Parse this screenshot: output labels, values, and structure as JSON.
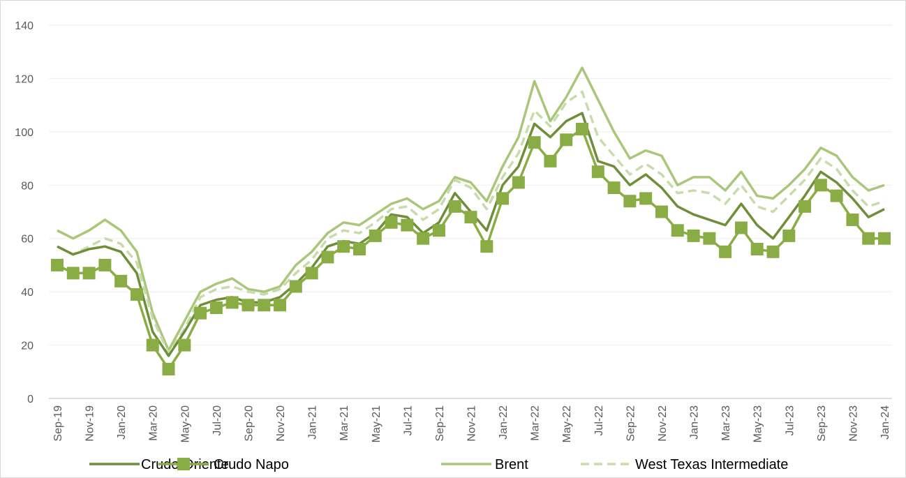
{
  "chart_data": {
    "type": "line",
    "categories": [
      "Sep-19",
      null,
      "Nov-19",
      null,
      "Jan-20",
      null,
      "Mar-20",
      null,
      "May-20",
      null,
      "Jul-20",
      null,
      "Sep-20",
      null,
      "Nov-20",
      null,
      "Jan-21",
      null,
      "Mar-21",
      null,
      "May-21",
      null,
      "Jul-21",
      null,
      "Sep-21",
      null,
      "Nov-21",
      null,
      "Jan-22",
      null,
      "Mar-22",
      null,
      "May-22",
      null,
      "Jul-22",
      null,
      "Sep-22",
      null,
      "Nov-22",
      null,
      "Jan-23",
      null,
      "Mar-23",
      null,
      "May-23",
      null,
      "Jul-23",
      null,
      "Sep-23",
      null,
      "Nov-23",
      null,
      "Jan-24"
    ],
    "series": [
      {
        "name": "Crudo Oriente",
        "color": "#6e8e3a",
        "values": [
          57,
          54,
          56,
          57,
          55,
          47,
          25,
          16,
          25,
          35,
          37,
          38,
          36,
          36,
          38,
          43,
          49,
          57,
          59,
          58,
          62,
          69,
          68,
          62,
          66,
          77,
          70,
          63,
          80,
          87,
          103,
          98,
          104,
          107,
          89,
          87,
          80,
          84,
          79,
          72,
          69,
          67,
          65,
          73,
          65,
          60,
          68,
          76,
          85,
          81,
          75,
          68,
          71
        ]
      },
      {
        "name": "Crudo Napo",
        "color": "#8aac45",
        "marker": "square",
        "values": [
          50,
          47,
          47,
          50,
          44,
          39,
          20,
          11,
          20,
          32,
          34,
          36,
          35,
          35,
          35,
          42,
          47,
          53,
          57,
          56,
          61,
          66,
          65,
          60,
          63,
          72,
          68,
          57,
          75,
          81,
          96,
          89,
          97,
          101,
          85,
          79,
          74,
          75,
          70,
          63,
          61,
          60,
          55,
          64,
          56,
          55,
          61,
          72,
          80,
          76,
          67,
          60,
          60
        ]
      },
      {
        "name": "Brent",
        "color": "#a9c77a",
        "values": [
          63,
          60,
          63,
          67,
          63,
          55,
          32,
          18,
          29,
          40,
          43,
          45,
          41,
          40,
          42,
          50,
          55,
          62,
          66,
          65,
          69,
          73,
          75,
          71,
          74,
          83,
          81,
          74,
          87,
          98,
          119,
          104,
          113,
          124,
          112,
          100,
          90,
          93,
          91,
          80,
          83,
          83,
          78,
          85,
          76,
          75,
          80,
          86,
          94,
          91,
          83,
          78,
          80
        ]
      },
      {
        "name": "West Texas Intermediate",
        "color": "#c8dbab",
        "dashed": true,
        "values": [
          57,
          54,
          57,
          60,
          58,
          51,
          30,
          17,
          26,
          38,
          41,
          42,
          40,
          39,
          41,
          47,
          52,
          60,
          63,
          62,
          66,
          71,
          72,
          67,
          71,
          82,
          79,
          71,
          83,
          92,
          108,
          102,
          111,
          115,
          98,
          91,
          84,
          88,
          84,
          77,
          78,
          77,
          73,
          80,
          72,
          70,
          76,
          82,
          90,
          86,
          78,
          72,
          74
        ]
      }
    ],
    "ylim": [
      0,
      140
    ],
    "yticks": [
      0,
      20,
      40,
      60,
      80,
      100,
      120,
      140
    ],
    "grid": true,
    "legend": "bottom"
  }
}
